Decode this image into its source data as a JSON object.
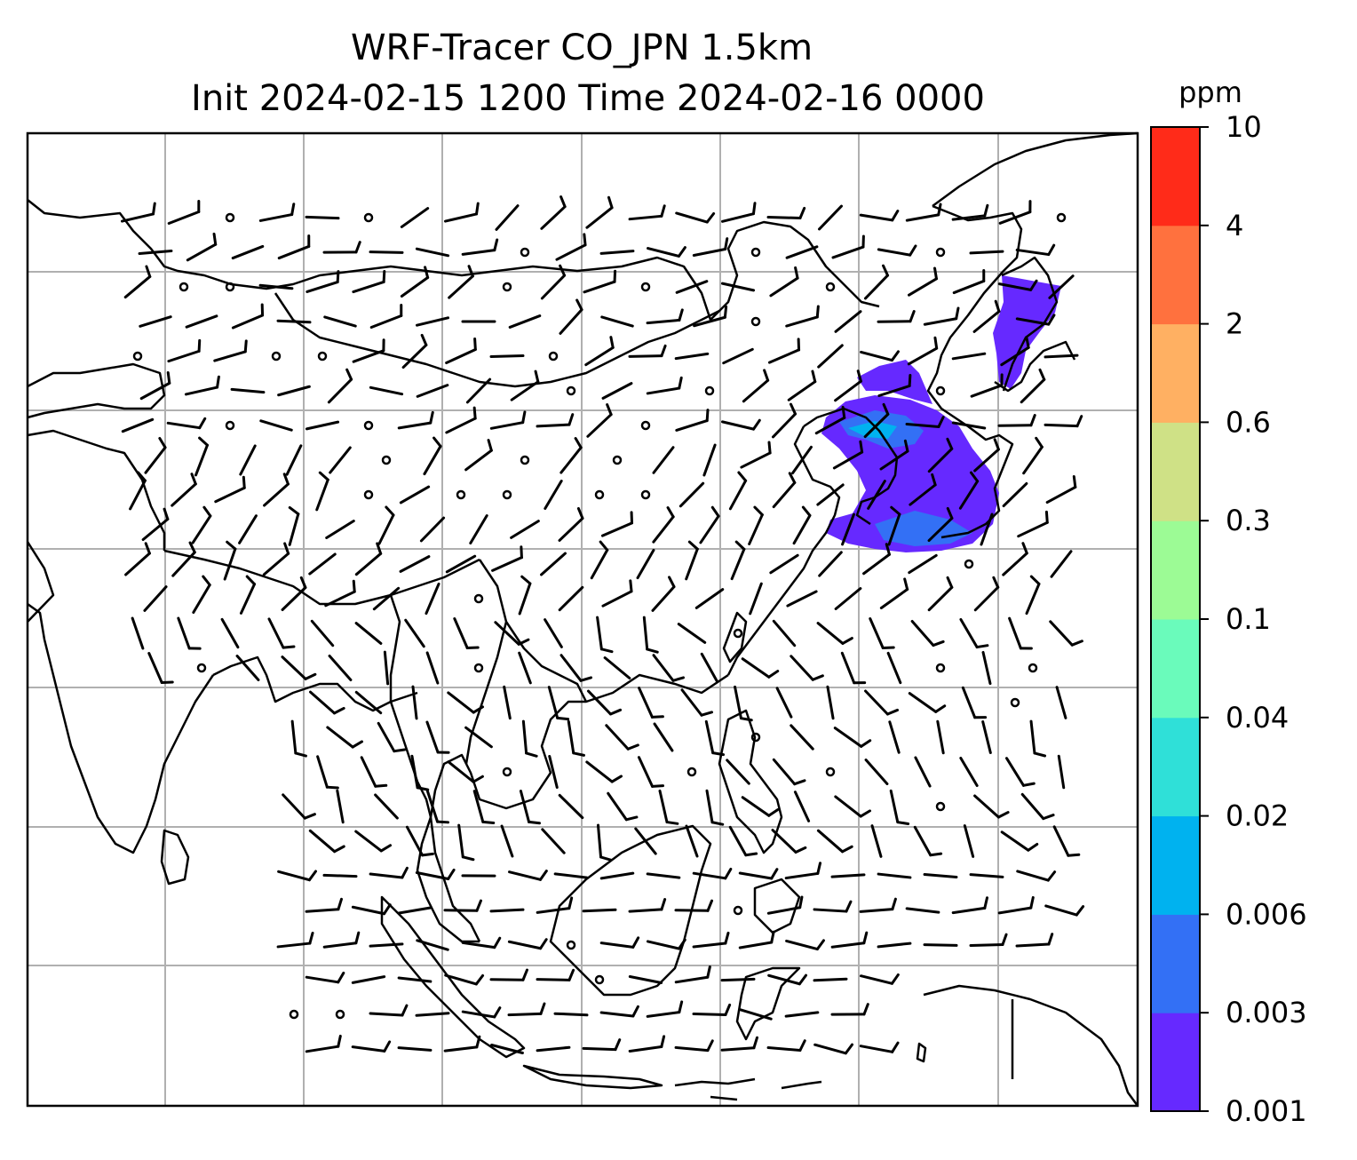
{
  "chart_data": {
    "type": "heatmap",
    "title": "WRF-Tracer CO_JPN 1.5km",
    "subtitle": "Init 2024-02-15 1200 Time 2024-02-16 0000",
    "colorbar": {
      "label": "ppm",
      "levels": [
        "0.001",
        "0.003",
        "0.006",
        "0.02",
        "0.04",
        "0.1",
        "0.3",
        "0.6",
        "2",
        "4",
        "10"
      ],
      "colors": [
        "#6629ff",
        "#3370f5",
        "#00b2ef",
        "#2fe0d8",
        "#6afbbb",
        "#9cfb95",
        "#cfe186",
        "#ffb062",
        "#ff713e",
        "#ff2b19"
      ]
    },
    "map": {
      "gridlines": true,
      "field_color": "#6629ff",
      "core_color": "#3370f5",
      "wind_barb_color": "#000000"
    }
  }
}
